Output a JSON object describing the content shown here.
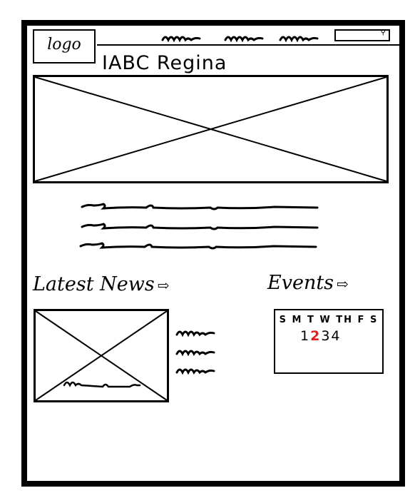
{
  "header": {
    "logo_label": "logo",
    "site_title": "IABC Regina"
  },
  "sections": {
    "news_heading": "Latest News",
    "events_heading": "Events"
  },
  "calendar": {
    "day_headers": "S M T W TH F S",
    "dates": [
      "1",
      "2",
      "3",
      "4"
    ],
    "highlighted_date": "2",
    "highlight_color": "#e02020"
  },
  "icons": {
    "search": "search-icon",
    "arrow": "arrow-right-icon"
  }
}
